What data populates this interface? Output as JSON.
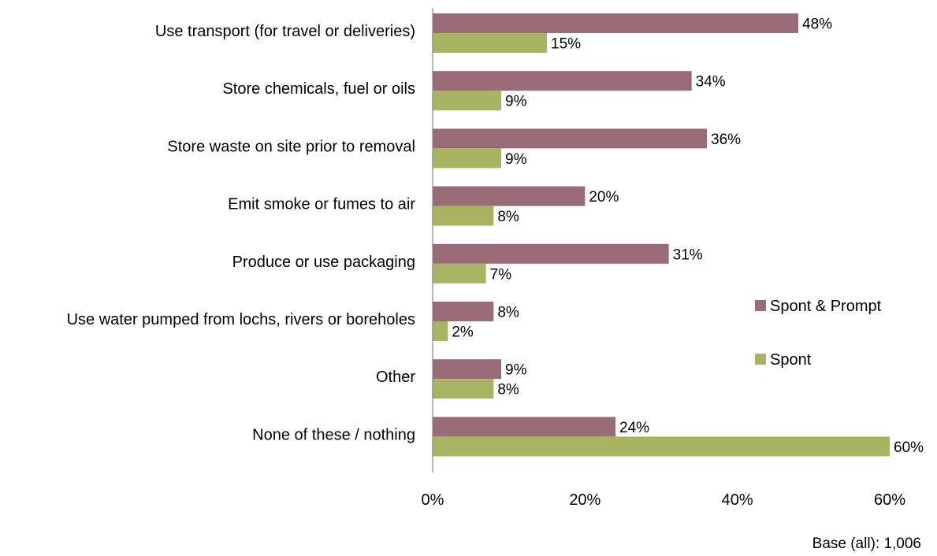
{
  "chart_data": {
    "type": "bar",
    "orientation": "horizontal",
    "categories": [
      "Use transport (for travel or deliveries)",
      "Store chemicals, fuel or oils",
      "Store waste on site prior to removal",
      "Emit smoke or fumes to air",
      "Produce or use packaging",
      "Use water pumped from lochs, rivers or boreholes",
      "Other",
      "None of these / nothing"
    ],
    "series": [
      {
        "name": "Spont & Prompt",
        "color": "#996b76",
        "values": [
          48,
          34,
          36,
          20,
          31,
          8,
          9,
          24
        ],
        "labels": [
          "48%",
          "34%",
          "36%",
          "20%",
          "31%",
          "8%",
          "9%",
          "24%"
        ]
      },
      {
        "name": "Spont",
        "color": "#a9b463",
        "values": [
          15,
          9,
          9,
          8,
          7,
          2,
          8,
          60
        ],
        "labels": [
          "15%",
          "9%",
          "9%",
          "8%",
          "7%",
          "2%",
          "8%",
          "60%"
        ]
      }
    ],
    "xlim": [
      0,
      60
    ],
    "xticks": [
      0,
      20,
      40,
      60
    ],
    "xtick_labels": [
      "0%",
      "20%",
      "40%",
      "60%"
    ],
    "grid": false,
    "legend_position": "right"
  },
  "footnote": "Base (all): 1,006"
}
